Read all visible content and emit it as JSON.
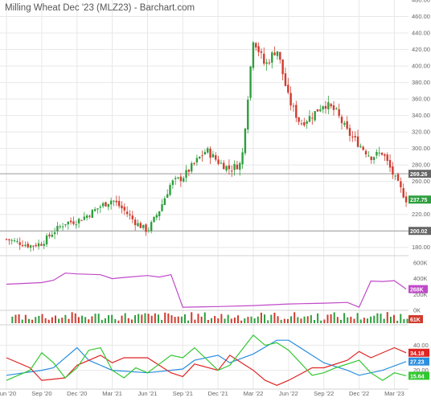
{
  "title": "Milling Wheat Dec '23 (MLZ23) - Barchart.com",
  "colors": {
    "up": "#2e9e3e",
    "down": "#d13b2e",
    "grid": "#e8e8e8",
    "refline": "#9a9a9a",
    "oi_line": "#c049c9",
    "blue": "#2b8fe0",
    "red": "#e02424",
    "green": "#32c832",
    "volume_up": "#2e9e3e",
    "volume_down": "#d13b2e"
  },
  "chart_data": [
    {
      "type": "candlestick",
      "name": "price",
      "xlabel": "",
      "ylabel": "",
      "x_ticks": [
        "Jun '20",
        "Sep '20",
        "Dec '20",
        "Mar '21",
        "Jun '21",
        "Sep '21",
        "Dec '21",
        "Mar '22",
        "Jun '22",
        "Sep '22",
        "Dec '22",
        "Mar '23"
      ],
      "y_ticks": [
        "180.00",
        "200.00",
        "220.00",
        "240.00",
        "260.00",
        "280.00",
        "300.00",
        "320.00",
        "340.00",
        "360.00",
        "380.00",
        "400.00",
        "420.00",
        "440.00",
        "460.00",
        "480.00"
      ],
      "ylim": [
        170,
        480
      ],
      "reference_lines": [
        {
          "value": 269.26,
          "label": "269.26"
        },
        {
          "value": 200.02,
          "label": "200.02"
        }
      ],
      "last_value_label": "237.75",
      "close_points": [
        [
          "Jun '20",
          190
        ],
        [
          "Jul '20",
          186
        ],
        [
          "Aug '20",
          182
        ],
        [
          "Sep '20",
          185
        ],
        [
          "Oct '20",
          199
        ],
        [
          "Nov '20",
          210
        ],
        [
          "Dec '20",
          212
        ],
        [
          "Jan '21",
          220
        ],
        [
          "Feb '21",
          230
        ],
        [
          "Mar '21",
          238
        ],
        [
          "Apr '21",
          225
        ],
        [
          "May '21",
          210
        ],
        [
          "Jun '21",
          200
        ],
        [
          "Jul '21",
          225
        ],
        [
          "Aug '21",
          258
        ],
        [
          "Sep '21",
          265
        ],
        [
          "Oct '21",
          282
        ],
        [
          "Nov '21",
          298
        ],
        [
          "Dec '21",
          284
        ],
        [
          "Jan '22",
          275
        ],
        [
          "Feb '22",
          282
        ],
        [
          "Mar '22",
          435
        ],
        [
          "Apr '22",
          400
        ],
        [
          "May '22",
          422
        ],
        [
          "Jun '22",
          360
        ],
        [
          "Jul '22",
          330
        ],
        [
          "Aug '22",
          340
        ],
        [
          "Sep '22",
          355
        ],
        [
          "Oct '22",
          345
        ],
        [
          "Nov '22",
          320
        ],
        [
          "Dec '22",
          305
        ],
        [
          "Jan '23",
          290
        ],
        [
          "Feb '23",
          295
        ],
        [
          "Mar '23",
          265
        ],
        [
          "Apr '23",
          238
        ]
      ]
    },
    {
      "type": "line",
      "name": "open interest",
      "y_ticks": [
        "0K",
        "200K",
        "400K",
        "600K"
      ],
      "ylim": [
        0,
        650
      ],
      "last_value_label": "268K",
      "points": [
        [
          "Jun '20",
          330
        ],
        [
          "Sep '20",
          350
        ],
        [
          "Oct '20",
          380
        ],
        [
          "Nov '20",
          470
        ],
        [
          "Dec '20",
          460
        ],
        [
          "Feb '21",
          450
        ],
        [
          "Mar '21",
          400
        ],
        [
          "Apr '21",
          415
        ],
        [
          "Jun '21",
          440
        ],
        [
          "Jul '21",
          420
        ],
        [
          "Aug '21",
          450
        ],
        [
          "Sep '21",
          40
        ],
        [
          "Dec '21",
          48
        ],
        [
          "Mar '22",
          60
        ],
        [
          "Jun '22",
          80
        ],
        [
          "Sep '22",
          90
        ],
        [
          "Nov '22",
          100
        ],
        [
          "Dec '22",
          40
        ],
        [
          "Jan '23",
          370
        ],
        [
          "Feb '23",
          365
        ],
        [
          "Mar '23",
          375
        ],
        [
          "Apr '23",
          268
        ]
      ]
    },
    {
      "type": "bar",
      "name": "volume",
      "last_value_label": "61K"
    },
    {
      "type": "line",
      "name": "oscillator",
      "y_ticks": [
        "20.00",
        "40.00"
      ],
      "ylim": [
        5,
        55
      ],
      "series": [
        {
          "color_key": "blue",
          "last_value_label": "27.23",
          "points": [
            [
              "Jun '20",
              16
            ],
            [
              "Sep '20",
              20
            ],
            [
              "Oct '20",
              22
            ],
            [
              "Dec '20",
              38
            ],
            [
              "Jan '21",
              28
            ],
            [
              "Mar '21",
              20
            ],
            [
              "Jun '21",
              18
            ],
            [
              "Sep '21",
              21
            ],
            [
              "Oct '21",
              28
            ],
            [
              "Dec '21",
              32
            ],
            [
              "Jan '22",
              26
            ],
            [
              "Mar '22",
              33
            ],
            [
              "May '22",
              44
            ],
            [
              "Jun '22",
              44
            ],
            [
              "Aug '22",
              32
            ],
            [
              "Sep '22",
              26
            ],
            [
              "Nov '22",
              20
            ],
            [
              "Dec '22",
              16
            ],
            [
              "Feb '23",
              20
            ],
            [
              "Apr '23",
              27
            ]
          ]
        },
        {
          "color_key": "red",
          "last_value_label": "34.18",
          "points": [
            [
              "Jun '20",
              30
            ],
            [
              "Aug '20",
              22
            ],
            [
              "Sep '20",
              12
            ],
            [
              "Nov '20",
              14
            ],
            [
              "Dec '20",
              24
            ],
            [
              "Feb '21",
              32
            ],
            [
              "Mar '21",
              26
            ],
            [
              "Apr '21",
              30
            ],
            [
              "Jun '21",
              30
            ],
            [
              "Aug '21",
              18
            ],
            [
              "Sep '21",
              15
            ],
            [
              "Oct '21",
              25
            ],
            [
              "Dec '21",
              20
            ],
            [
              "Jan '22",
              32
            ],
            [
              "Mar '22",
              20
            ],
            [
              "Apr '22",
              12
            ],
            [
              "May '22",
              8
            ],
            [
              "Jun '22",
              12
            ],
            [
              "Aug '22",
              22
            ],
            [
              "Sep '22",
              22
            ],
            [
              "Nov '22",
              28
            ],
            [
              "Dec '22",
              35
            ],
            [
              "Jan '23",
              30
            ],
            [
              "Mar '23",
              38
            ],
            [
              "Apr '23",
              34
            ]
          ]
        },
        {
          "color_key": "green",
          "last_value_label": "15.64",
          "points": [
            [
              "Jun '20",
              12
            ],
            [
              "Aug '20",
              20
            ],
            [
              "Sep '20",
              34
            ],
            [
              "Oct '20",
              26
            ],
            [
              "Nov '20",
              14
            ],
            [
              "Dec '20",
              22
            ],
            [
              "Jan '21",
              36
            ],
            [
              "Feb '21",
              38
            ],
            [
              "Mar '21",
              20
            ],
            [
              "Apr '21",
              14
            ],
            [
              "May '21",
              22
            ],
            [
              "Jun '21",
              18
            ],
            [
              "Jul '21",
              25
            ],
            [
              "Aug '21",
              32
            ],
            [
              "Sep '21",
              30
            ],
            [
              "Oct '21",
              38
            ],
            [
              "Dec '21",
              20
            ],
            [
              "Jan '22",
              24
            ],
            [
              "Mar '22",
              48
            ],
            [
              "Apr '22",
              40
            ],
            [
              "May '22",
              42
            ],
            [
              "Jun '22",
              36
            ],
            [
              "Aug '22",
              16
            ],
            [
              "Sep '22",
              18
            ],
            [
              "Oct '22",
              22
            ],
            [
              "Dec '22",
              28
            ],
            [
              "Jan '23",
              18
            ],
            [
              "Feb '23",
              12
            ],
            [
              "Mar '23",
              18
            ],
            [
              "Apr '23",
              15.64
            ]
          ]
        }
      ]
    }
  ]
}
